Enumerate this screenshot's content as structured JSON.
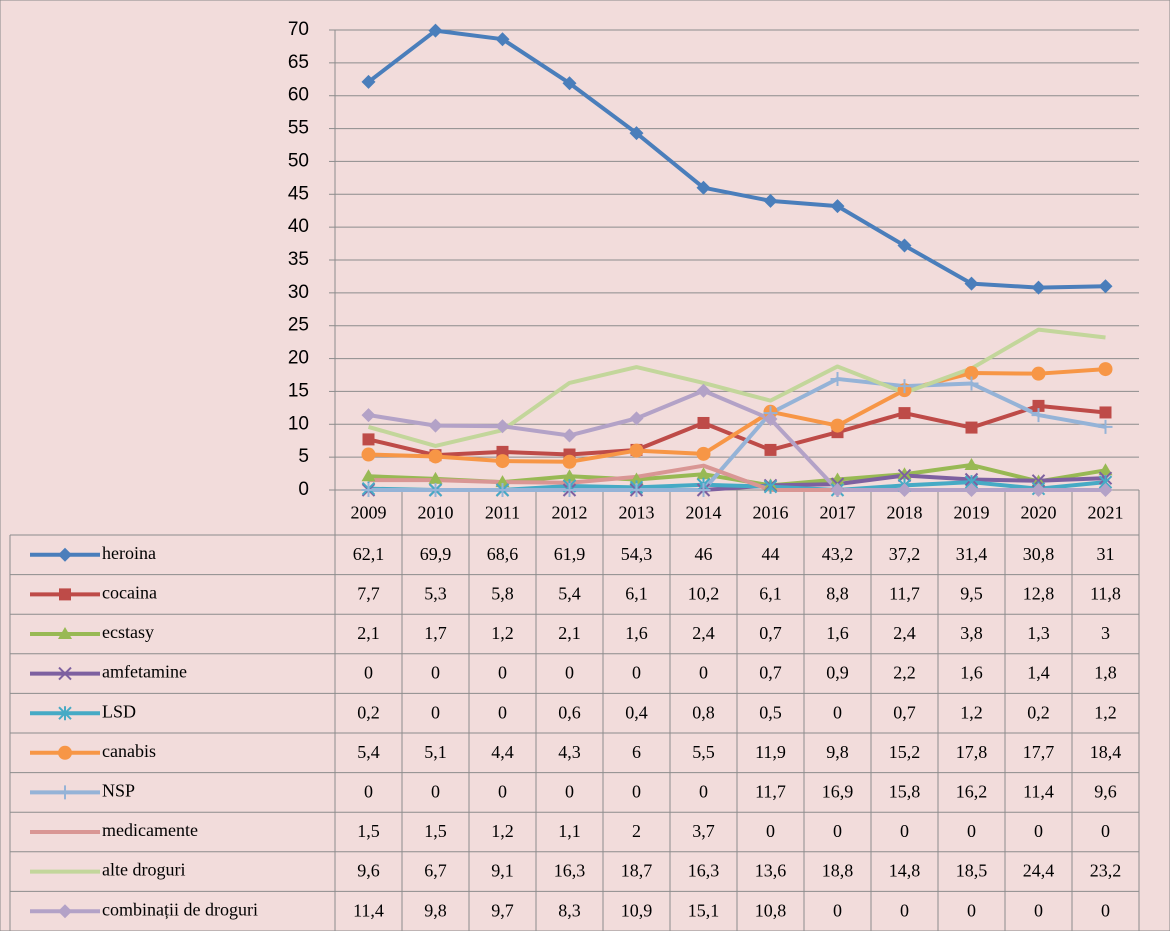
{
  "chart_data": {
    "type": "line",
    "categories": [
      "2009",
      "2010",
      "2011",
      "2012",
      "2013",
      "2014",
      "2016",
      "2017",
      "2018",
      "2019",
      "2020",
      "2021"
    ],
    "ylim": [
      0,
      70
    ],
    "yticks": [
      0,
      5,
      10,
      15,
      20,
      25,
      30,
      35,
      40,
      45,
      50,
      55,
      60,
      65,
      70
    ],
    "grid": true,
    "series": [
      {
        "name": "heroina",
        "color": "#4a7ebb",
        "marker": "diamond",
        "values": [
          62.1,
          69.9,
          68.6,
          61.9,
          54.3,
          46,
          44,
          43.2,
          37.2,
          31.4,
          30.8,
          31
        ],
        "value_labels": [
          "62,1",
          "69,9",
          "68,6",
          "61,9",
          "54,3",
          "46",
          "44",
          "43,2",
          "37,2",
          "31,4",
          "30,8",
          "31"
        ]
      },
      {
        "name": "cocaina",
        "color": "#be4b48",
        "marker": "square",
        "values": [
          7.7,
          5.3,
          5.8,
          5.4,
          6.1,
          10.2,
          6.1,
          8.8,
          11.7,
          9.5,
          12.8,
          11.8
        ],
        "value_labels": [
          "7,7",
          "5,3",
          "5,8",
          "5,4",
          "6,1",
          "10,2",
          "6,1",
          "8,8",
          "11,7",
          "9,5",
          "12,8",
          "11,8"
        ]
      },
      {
        "name": "ecstasy",
        "color": "#98b954",
        "marker": "triangle",
        "values": [
          2.1,
          1.7,
          1.2,
          2.1,
          1.6,
          2.4,
          0.7,
          1.6,
          2.4,
          3.8,
          1.3,
          3
        ],
        "value_labels": [
          "2,1",
          "1,7",
          "1,2",
          "2,1",
          "1,6",
          "2,4",
          "0,7",
          "1,6",
          "2,4",
          "3,8",
          "1,3",
          "3"
        ]
      },
      {
        "name": "amfetamine",
        "color": "#7d60a0",
        "marker": "x",
        "values": [
          0,
          0,
          0,
          0,
          0,
          0,
          0.7,
          0.9,
          2.2,
          1.6,
          1.4,
          1.8
        ],
        "value_labels": [
          "0",
          "0",
          "0",
          "0",
          "0",
          "0",
          "0,7",
          "0,9",
          "2,2",
          "1,6",
          "1,4",
          "1,8"
        ]
      },
      {
        "name": "LSD",
        "color": "#46aac5",
        "marker": "star",
        "values": [
          0.2,
          0,
          0,
          0.6,
          0.4,
          0.8,
          0.5,
          0,
          0.7,
          1.2,
          0.2,
          1.2
        ],
        "value_labels": [
          "0,2",
          "0",
          "0",
          "0,6",
          "0,4",
          "0,8",
          "0,5",
          "0",
          "0,7",
          "1,2",
          "0,2",
          "1,2"
        ]
      },
      {
        "name": "canabis",
        "color": "#f79646",
        "marker": "circle",
        "values": [
          5.4,
          5.1,
          4.4,
          4.3,
          6,
          5.5,
          11.9,
          9.8,
          15.2,
          17.8,
          17.7,
          18.4
        ],
        "value_labels": [
          "5,4",
          "5,1",
          "4,4",
          "4,3",
          "6",
          "5,5",
          "11,9",
          "9,8",
          "15,2",
          "17,8",
          "17,7",
          "18,4"
        ]
      },
      {
        "name": "NSP",
        "color": "#95b3d7",
        "marker": "plus",
        "values": [
          0,
          0,
          0,
          0,
          0,
          0,
          11.7,
          16.9,
          15.8,
          16.2,
          11.4,
          9.6
        ],
        "value_labels": [
          "0",
          "0",
          "0",
          "0",
          "0",
          "0",
          "11,7",
          "16,9",
          "15,8",
          "16,2",
          "11,4",
          "9,6"
        ]
      },
      {
        "name": "medicamente",
        "color": "#d99694",
        "marker": "none",
        "values": [
          1.5,
          1.5,
          1.2,
          1.1,
          2,
          3.7,
          0,
          0,
          0,
          0,
          0,
          0
        ],
        "value_labels": [
          "1,5",
          "1,5",
          "1,2",
          "1,1",
          "2",
          "3,7",
          "0",
          "0",
          "0",
          "0",
          "0",
          "0"
        ]
      },
      {
        "name": "alte droguri",
        "color": "#c3d69b",
        "marker": "none",
        "values": [
          9.6,
          6.7,
          9.1,
          16.3,
          18.7,
          16.3,
          13.6,
          18.8,
          14.8,
          18.5,
          24.4,
          23.2
        ],
        "value_labels": [
          "9,6",
          "6,7",
          "9,1",
          "16,3",
          "18,7",
          "16,3",
          "13,6",
          "18,8",
          "14,8",
          "18,5",
          "24,4",
          "23,2"
        ]
      },
      {
        "name": "combinații de droguri",
        "color": "#b3a2c7",
        "marker": "diamond",
        "values": [
          11.4,
          9.8,
          9.7,
          8.3,
          10.9,
          15.1,
          10.8,
          0,
          0,
          0,
          0,
          0
        ],
        "value_labels": [
          "11,4",
          "9,8",
          "9,7",
          "8,3",
          "10,9",
          "15,1",
          "10,8",
          "0",
          "0",
          "0",
          "0",
          "0"
        ]
      }
    ]
  }
}
